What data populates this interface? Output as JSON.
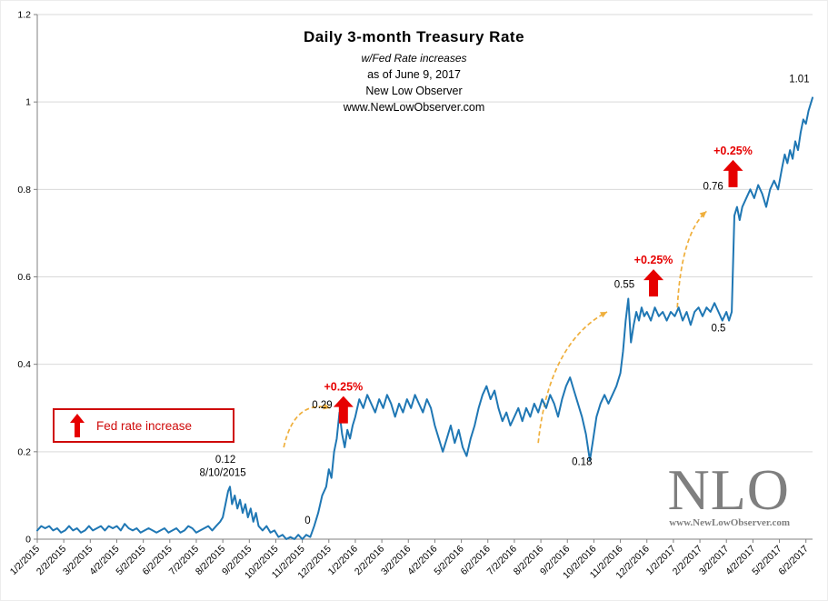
{
  "title_block": {
    "title": "Daily 3-month Treasury Rate",
    "subtitle": "w/Fed Rate increases",
    "as_of": "as of June 9, 2017",
    "org": "New Low Observer",
    "url": "www.NewLowObserver.com"
  },
  "legend": {
    "label": "Fed rate increase"
  },
  "watermark": {
    "logo": "NLO",
    "url": "www.NewLowObserver.com"
  },
  "colors": {
    "line": "#1f77b4",
    "red": "#e60000",
    "gold": "#efaf3c",
    "grid": "#d9d9d9",
    "axis": "#808080"
  },
  "chart_data": {
    "type": "line",
    "title": "Daily 3-month Treasury Rate",
    "xlabel": "",
    "ylabel": "",
    "grid": "horizontal",
    "legend_position": "plot-left",
    "ylim": [
      0,
      1.2
    ],
    "y_ticks": [
      0,
      0.2,
      0.4,
      0.6,
      0.8,
      1,
      1.2
    ],
    "y_tick_labels": [
      "0",
      "0.2",
      "0.4",
      "0.6",
      "0.8",
      "1",
      "1.2"
    ],
    "x_range_months": [
      0,
      29.25
    ],
    "x_tick_labels": [
      "1/2/2015",
      "2/2/2015",
      "3/2/2015",
      "4/2/2015",
      "5/2/2015",
      "6/2/2015",
      "7/2/2015",
      "8/2/2015",
      "9/2/2015",
      "10/2/2015",
      "11/2/2015",
      "12/2/2015",
      "1/2/2016",
      "2/2/2016",
      "3/2/2016",
      "4/2/2016",
      "5/2/2016",
      "6/2/2016",
      "7/2/2016",
      "8/2/2016",
      "9/2/2016",
      "10/2/2016",
      "11/2/2016",
      "12/2/2016",
      "1/2/2017",
      "2/2/2017",
      "3/2/2017",
      "4/2/2017",
      "5/2/2017",
      "6/2/2017"
    ],
    "series": [
      {
        "name": "Daily 3-month Treasury Rate",
        "color": "#1f77b4",
        "points": [
          [
            0,
            0.02
          ],
          [
            0.15,
            0.03
          ],
          [
            0.3,
            0.025
          ],
          [
            0.45,
            0.03
          ],
          [
            0.6,
            0.02
          ],
          [
            0.75,
            0.025
          ],
          [
            0.9,
            0.015
          ],
          [
            1.05,
            0.02
          ],
          [
            1.2,
            0.03
          ],
          [
            1.35,
            0.02
          ],
          [
            1.5,
            0.025
          ],
          [
            1.65,
            0.015
          ],
          [
            1.8,
            0.02
          ],
          [
            1.95,
            0.03
          ],
          [
            2.1,
            0.02
          ],
          [
            2.25,
            0.025
          ],
          [
            2.4,
            0.03
          ],
          [
            2.55,
            0.02
          ],
          [
            2.7,
            0.03
          ],
          [
            2.85,
            0.025
          ],
          [
            3,
            0.03
          ],
          [
            3.15,
            0.02
          ],
          [
            3.3,
            0.035
          ],
          [
            3.45,
            0.025
          ],
          [
            3.6,
            0.02
          ],
          [
            3.75,
            0.025
          ],
          [
            3.9,
            0.015
          ],
          [
            4.05,
            0.02
          ],
          [
            4.2,
            0.025
          ],
          [
            4.35,
            0.02
          ],
          [
            4.5,
            0.015
          ],
          [
            4.65,
            0.02
          ],
          [
            4.8,
            0.025
          ],
          [
            4.95,
            0.015
          ],
          [
            5.1,
            0.02
          ],
          [
            5.25,
            0.025
          ],
          [
            5.4,
            0.015
          ],
          [
            5.55,
            0.02
          ],
          [
            5.7,
            0.03
          ],
          [
            5.85,
            0.025
          ],
          [
            6,
            0.015
          ],
          [
            6.15,
            0.02
          ],
          [
            6.3,
            0.025
          ],
          [
            6.45,
            0.03
          ],
          [
            6.6,
            0.02
          ],
          [
            6.75,
            0.03
          ],
          [
            6.9,
            0.04
          ],
          [
            7,
            0.05
          ],
          [
            7.1,
            0.08
          ],
          [
            7.2,
            0.11
          ],
          [
            7.27,
            0.12
          ],
          [
            7.35,
            0.08
          ],
          [
            7.45,
            0.1
          ],
          [
            7.55,
            0.07
          ],
          [
            7.65,
            0.09
          ],
          [
            7.75,
            0.06
          ],
          [
            7.85,
            0.08
          ],
          [
            7.95,
            0.05
          ],
          [
            8.05,
            0.07
          ],
          [
            8.15,
            0.04
          ],
          [
            8.25,
            0.06
          ],
          [
            8.35,
            0.03
          ],
          [
            8.5,
            0.02
          ],
          [
            8.65,
            0.03
          ],
          [
            8.8,
            0.015
          ],
          [
            8.95,
            0.02
          ],
          [
            9.1,
            0.005
          ],
          [
            9.25,
            0.01
          ],
          [
            9.4,
            0
          ],
          [
            9.55,
            0.005
          ],
          [
            9.7,
            0
          ],
          [
            9.85,
            0.01
          ],
          [
            10,
            0
          ],
          [
            10.15,
            0.01
          ],
          [
            10.3,
            0.005
          ],
          [
            10.45,
            0.03
          ],
          [
            10.6,
            0.06
          ],
          [
            10.75,
            0.1
          ],
          [
            10.9,
            0.12
          ],
          [
            11,
            0.16
          ],
          [
            11.1,
            0.14
          ],
          [
            11.2,
            0.2
          ],
          [
            11.3,
            0.23
          ],
          [
            11.4,
            0.29
          ],
          [
            11.5,
            0.24
          ],
          [
            11.6,
            0.21
          ],
          [
            11.7,
            0.25
          ],
          [
            11.8,
            0.23
          ],
          [
            11.9,
            0.26
          ],
          [
            12,
            0.28
          ],
          [
            12.15,
            0.32
          ],
          [
            12.3,
            0.3
          ],
          [
            12.45,
            0.33
          ],
          [
            12.6,
            0.31
          ],
          [
            12.75,
            0.29
          ],
          [
            12.9,
            0.32
          ],
          [
            13.05,
            0.3
          ],
          [
            13.2,
            0.33
          ],
          [
            13.35,
            0.31
          ],
          [
            13.5,
            0.28
          ],
          [
            13.65,
            0.31
          ],
          [
            13.8,
            0.29
          ],
          [
            13.95,
            0.32
          ],
          [
            14.1,
            0.3
          ],
          [
            14.25,
            0.33
          ],
          [
            14.4,
            0.31
          ],
          [
            14.55,
            0.29
          ],
          [
            14.7,
            0.32
          ],
          [
            14.85,
            0.3
          ],
          [
            15,
            0.26
          ],
          [
            15.15,
            0.23
          ],
          [
            15.3,
            0.2
          ],
          [
            15.45,
            0.23
          ],
          [
            15.6,
            0.26
          ],
          [
            15.75,
            0.22
          ],
          [
            15.9,
            0.25
          ],
          [
            16.05,
            0.21
          ],
          [
            16.2,
            0.19
          ],
          [
            16.35,
            0.23
          ],
          [
            16.5,
            0.26
          ],
          [
            16.65,
            0.3
          ],
          [
            16.8,
            0.33
          ],
          [
            16.95,
            0.35
          ],
          [
            17.1,
            0.32
          ],
          [
            17.25,
            0.34
          ],
          [
            17.4,
            0.3
          ],
          [
            17.55,
            0.27
          ],
          [
            17.7,
            0.29
          ],
          [
            17.85,
            0.26
          ],
          [
            18,
            0.28
          ],
          [
            18.15,
            0.3
          ],
          [
            18.3,
            0.27
          ],
          [
            18.45,
            0.3
          ],
          [
            18.6,
            0.28
          ],
          [
            18.75,
            0.31
          ],
          [
            18.9,
            0.29
          ],
          [
            19.05,
            0.32
          ],
          [
            19.2,
            0.3
          ],
          [
            19.35,
            0.33
          ],
          [
            19.5,
            0.31
          ],
          [
            19.65,
            0.28
          ],
          [
            19.8,
            0.32
          ],
          [
            19.95,
            0.35
          ],
          [
            20.1,
            0.37
          ],
          [
            20.25,
            0.34
          ],
          [
            20.4,
            0.31
          ],
          [
            20.55,
            0.28
          ],
          [
            20.7,
            0.24
          ],
          [
            20.85,
            0.18
          ],
          [
            20.95,
            0.22
          ],
          [
            21.1,
            0.28
          ],
          [
            21.25,
            0.31
          ],
          [
            21.4,
            0.33
          ],
          [
            21.55,
            0.31
          ],
          [
            21.7,
            0.33
          ],
          [
            21.85,
            0.35
          ],
          [
            22,
            0.38
          ],
          [
            22.1,
            0.43
          ],
          [
            22.2,
            0.5
          ],
          [
            22.3,
            0.55
          ],
          [
            22.4,
            0.45
          ],
          [
            22.5,
            0.49
          ],
          [
            22.6,
            0.52
          ],
          [
            22.7,
            0.5
          ],
          [
            22.8,
            0.53
          ],
          [
            22.9,
            0.51
          ],
          [
            23,
            0.52
          ],
          [
            23.15,
            0.5
          ],
          [
            23.3,
            0.53
          ],
          [
            23.45,
            0.51
          ],
          [
            23.6,
            0.52
          ],
          [
            23.75,
            0.5
          ],
          [
            23.9,
            0.52
          ],
          [
            24.05,
            0.51
          ],
          [
            24.2,
            0.53
          ],
          [
            24.35,
            0.5
          ],
          [
            24.5,
            0.52
          ],
          [
            24.65,
            0.49
          ],
          [
            24.8,
            0.52
          ],
          [
            24.95,
            0.53
          ],
          [
            25.1,
            0.51
          ],
          [
            25.25,
            0.53
          ],
          [
            25.4,
            0.52
          ],
          [
            25.55,
            0.54
          ],
          [
            25.7,
            0.52
          ],
          [
            25.85,
            0.5
          ],
          [
            26,
            0.52
          ],
          [
            26.1,
            0.5
          ],
          [
            26.2,
            0.52
          ],
          [
            26.3,
            0.74
          ],
          [
            26.4,
            0.76
          ],
          [
            26.5,
            0.73
          ],
          [
            26.6,
            0.76
          ],
          [
            26.75,
            0.78
          ],
          [
            26.9,
            0.8
          ],
          [
            27.05,
            0.78
          ],
          [
            27.2,
            0.81
          ],
          [
            27.35,
            0.79
          ],
          [
            27.5,
            0.76
          ],
          [
            27.65,
            0.8
          ],
          [
            27.8,
            0.82
          ],
          [
            27.95,
            0.8
          ],
          [
            28.1,
            0.85
          ],
          [
            28.2,
            0.88
          ],
          [
            28.3,
            0.86
          ],
          [
            28.4,
            0.89
          ],
          [
            28.5,
            0.87
          ],
          [
            28.6,
            0.91
          ],
          [
            28.7,
            0.89
          ],
          [
            28.8,
            0.93
          ],
          [
            28.9,
            0.96
          ],
          [
            29,
            0.95
          ],
          [
            29.1,
            0.98
          ],
          [
            29.25,
            1.01
          ]
        ]
      }
    ],
    "point_labels": [
      {
        "text": "0.12",
        "x": 7.1,
        "y": 0.175
      },
      {
        "text": "8/10/2015",
        "x": 7.0,
        "y": 0.145
      },
      {
        "text": "0",
        "x": 10.2,
        "y": 0.035
      },
      {
        "text": "0.29",
        "x": 10.75,
        "y": 0.3
      },
      {
        "text": "0.18",
        "x": 20.55,
        "y": 0.17
      },
      {
        "text": "0.55",
        "x": 22.15,
        "y": 0.575
      },
      {
        "text": "0.5",
        "x": 25.7,
        "y": 0.475
      },
      {
        "text": "0.76",
        "x": 25.5,
        "y": 0.8
      },
      {
        "text": "1.01",
        "x": 28.75,
        "y": 1.045
      }
    ],
    "fed_rate_increases": [
      {
        "x": 11.55,
        "y": 0.265,
        "label": "+0.25%"
      },
      {
        "x": 23.25,
        "y": 0.555,
        "label": "+0.25%"
      },
      {
        "x": 26.25,
        "y": 0.805,
        "label": "+0.25%"
      }
    ],
    "trend_arrows": [
      {
        "from": [
          9.3,
          0.21
        ],
        "ctrl": [
          9.7,
          0.32
        ],
        "to": [
          11.05,
          0.3
        ]
      },
      {
        "from": [
          18.9,
          0.22
        ],
        "ctrl": [
          19.3,
          0.45
        ],
        "to": [
          21.5,
          0.52
        ]
      },
      {
        "from": [
          24.15,
          0.53
        ],
        "ctrl": [
          24.3,
          0.7
        ],
        "to": [
          25.25,
          0.75
        ]
      }
    ]
  }
}
